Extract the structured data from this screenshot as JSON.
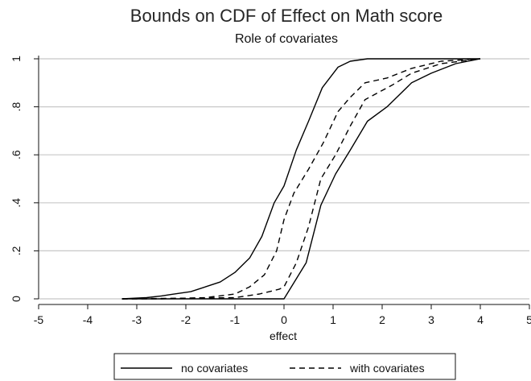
{
  "chart_data": {
    "type": "line",
    "title": "Bounds on CDF of Effect on Math score",
    "subtitle": "Role of covariates",
    "xlabel": "effect",
    "ylabel": "",
    "xlim": [
      -5,
      5
    ],
    "ylim": [
      0,
      1
    ],
    "x_ticks": [
      "-5",
      "-4",
      "-3",
      "-2",
      "-1",
      "0",
      "1",
      "2",
      "3",
      "4",
      "5"
    ],
    "y_ticks": [
      "0",
      ".2",
      ".4",
      ".6",
      ".8",
      "1"
    ],
    "grid": "horizontal",
    "legend": {
      "position": "bottom",
      "entries": [
        {
          "label": "no covariates",
          "style": "solid"
        },
        {
          "label": "with covariates",
          "style": "dashed"
        }
      ]
    },
    "series": [
      {
        "group": "no covariates",
        "style": "solid",
        "points": [
          [
            -3.3,
            0.0
          ],
          [
            -2.8,
            0.005
          ],
          [
            -2.5,
            0.012
          ],
          [
            -2.3,
            0.018
          ],
          [
            -1.9,
            0.03
          ],
          [
            -1.6,
            0.05
          ],
          [
            -1.3,
            0.07
          ],
          [
            -1.0,
            0.11
          ],
          [
            -0.7,
            0.17
          ],
          [
            -0.45,
            0.26
          ],
          [
            -0.2,
            0.4
          ],
          [
            0.0,
            0.47
          ],
          [
            0.25,
            0.62
          ],
          [
            0.5,
            0.74
          ],
          [
            0.78,
            0.88
          ],
          [
            1.1,
            0.965
          ],
          [
            1.35,
            0.99
          ],
          [
            1.7,
            1.0
          ],
          [
            4.0,
            1.0
          ]
        ]
      },
      {
        "group": "no covariates",
        "style": "solid",
        "points": [
          [
            -3.3,
            0.0
          ],
          [
            0.0,
            0.0
          ],
          [
            0.45,
            0.15
          ],
          [
            0.75,
            0.39
          ],
          [
            1.05,
            0.52
          ],
          [
            1.35,
            0.62
          ],
          [
            1.7,
            0.74
          ],
          [
            2.1,
            0.8
          ],
          [
            2.6,
            0.9
          ],
          [
            3.0,
            0.94
          ],
          [
            3.5,
            0.98
          ],
          [
            4.0,
            1.0
          ]
        ]
      },
      {
        "group": "with covariates",
        "style": "dashed",
        "points": [
          [
            -3.3,
            0.0
          ],
          [
            -2.5,
            0.0
          ],
          [
            -1.6,
            0.005
          ],
          [
            -1.0,
            0.02
          ],
          [
            -0.7,
            0.05
          ],
          [
            -0.4,
            0.1
          ],
          [
            -0.15,
            0.2
          ],
          [
            0.0,
            0.33
          ],
          [
            0.2,
            0.44
          ],
          [
            0.5,
            0.54
          ],
          [
            0.8,
            0.65
          ],
          [
            1.1,
            0.78
          ],
          [
            1.35,
            0.84
          ],
          [
            1.65,
            0.9
          ],
          [
            2.1,
            0.92
          ],
          [
            2.6,
            0.96
          ],
          [
            3.2,
            0.99
          ],
          [
            4.0,
            1.0
          ]
        ]
      },
      {
        "group": "with covariates",
        "style": "dashed",
        "points": [
          [
            -3.3,
            0.0
          ],
          [
            -1.0,
            0.005
          ],
          [
            -0.5,
            0.02
          ],
          [
            -0.1,
            0.04
          ],
          [
            0.0,
            0.05
          ],
          [
            0.25,
            0.15
          ],
          [
            0.5,
            0.3
          ],
          [
            0.75,
            0.5
          ],
          [
            1.05,
            0.6
          ],
          [
            1.35,
            0.72
          ],
          [
            1.65,
            0.83
          ],
          [
            2.2,
            0.89
          ],
          [
            2.6,
            0.94
          ],
          [
            3.2,
            0.98
          ],
          [
            4.0,
            1.0
          ]
        ]
      }
    ]
  }
}
